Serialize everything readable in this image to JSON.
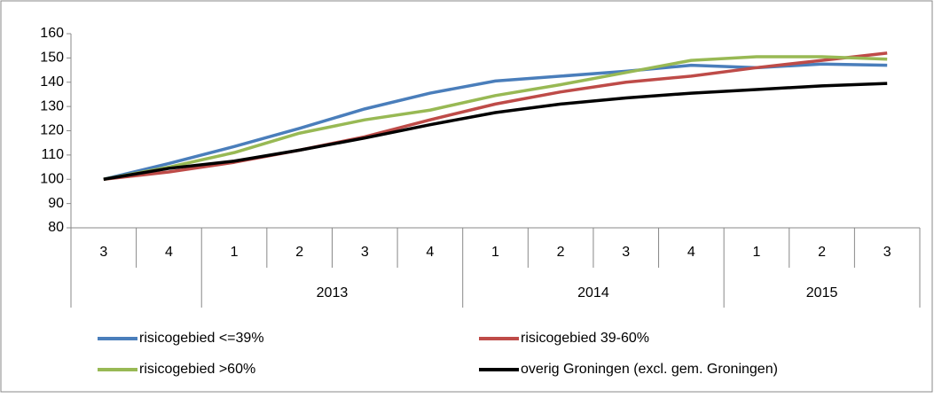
{
  "chart_data": {
    "type": "line",
    "categories": [
      "3",
      "4",
      "1",
      "2",
      "3",
      "4",
      "1",
      "2",
      "3",
      "4",
      "1",
      "2",
      "3"
    ],
    "category_groups": [
      null,
      null,
      "2013",
      "2013",
      "2013",
      "2013",
      "2014",
      "2014",
      "2014",
      "2014",
      "2015",
      "2015",
      "2015"
    ],
    "series": [
      {
        "name": "risicogebied <=39%",
        "color": "#4a7ebb",
        "values": [
          100,
          106.5,
          113.5,
          121,
          129,
          135.5,
          140.5,
          142.5,
          144.5,
          147,
          146,
          147.5,
          147
        ]
      },
      {
        "name": "risicogebied 39-60%",
        "color": "#be4b48",
        "values": [
          100,
          103,
          107,
          112,
          117.5,
          124.5,
          131,
          136,
          140,
          142.5,
          146,
          149,
          152
        ]
      },
      {
        "name": "risicogebied >60%",
        "color": "#98b954",
        "values": [
          100,
          105,
          111,
          119,
          124.5,
          128.5,
          134.5,
          139,
          144,
          149,
          150.5,
          150.5,
          149.5
        ]
      },
      {
        "name": "overig Groningen (excl. gem. Groningen)",
        "color": "#000000",
        "values": [
          100,
          104.5,
          107.5,
          112,
          117,
          122.5,
          127.5,
          131,
          133.5,
          135.5,
          137,
          138.5,
          139.5
        ]
      }
    ],
    "ylim": [
      80,
      160
    ],
    "yticks": [
      80,
      90,
      100,
      110,
      120,
      130,
      140,
      150,
      160
    ],
    "grid": false,
    "legend": "bottom"
  }
}
